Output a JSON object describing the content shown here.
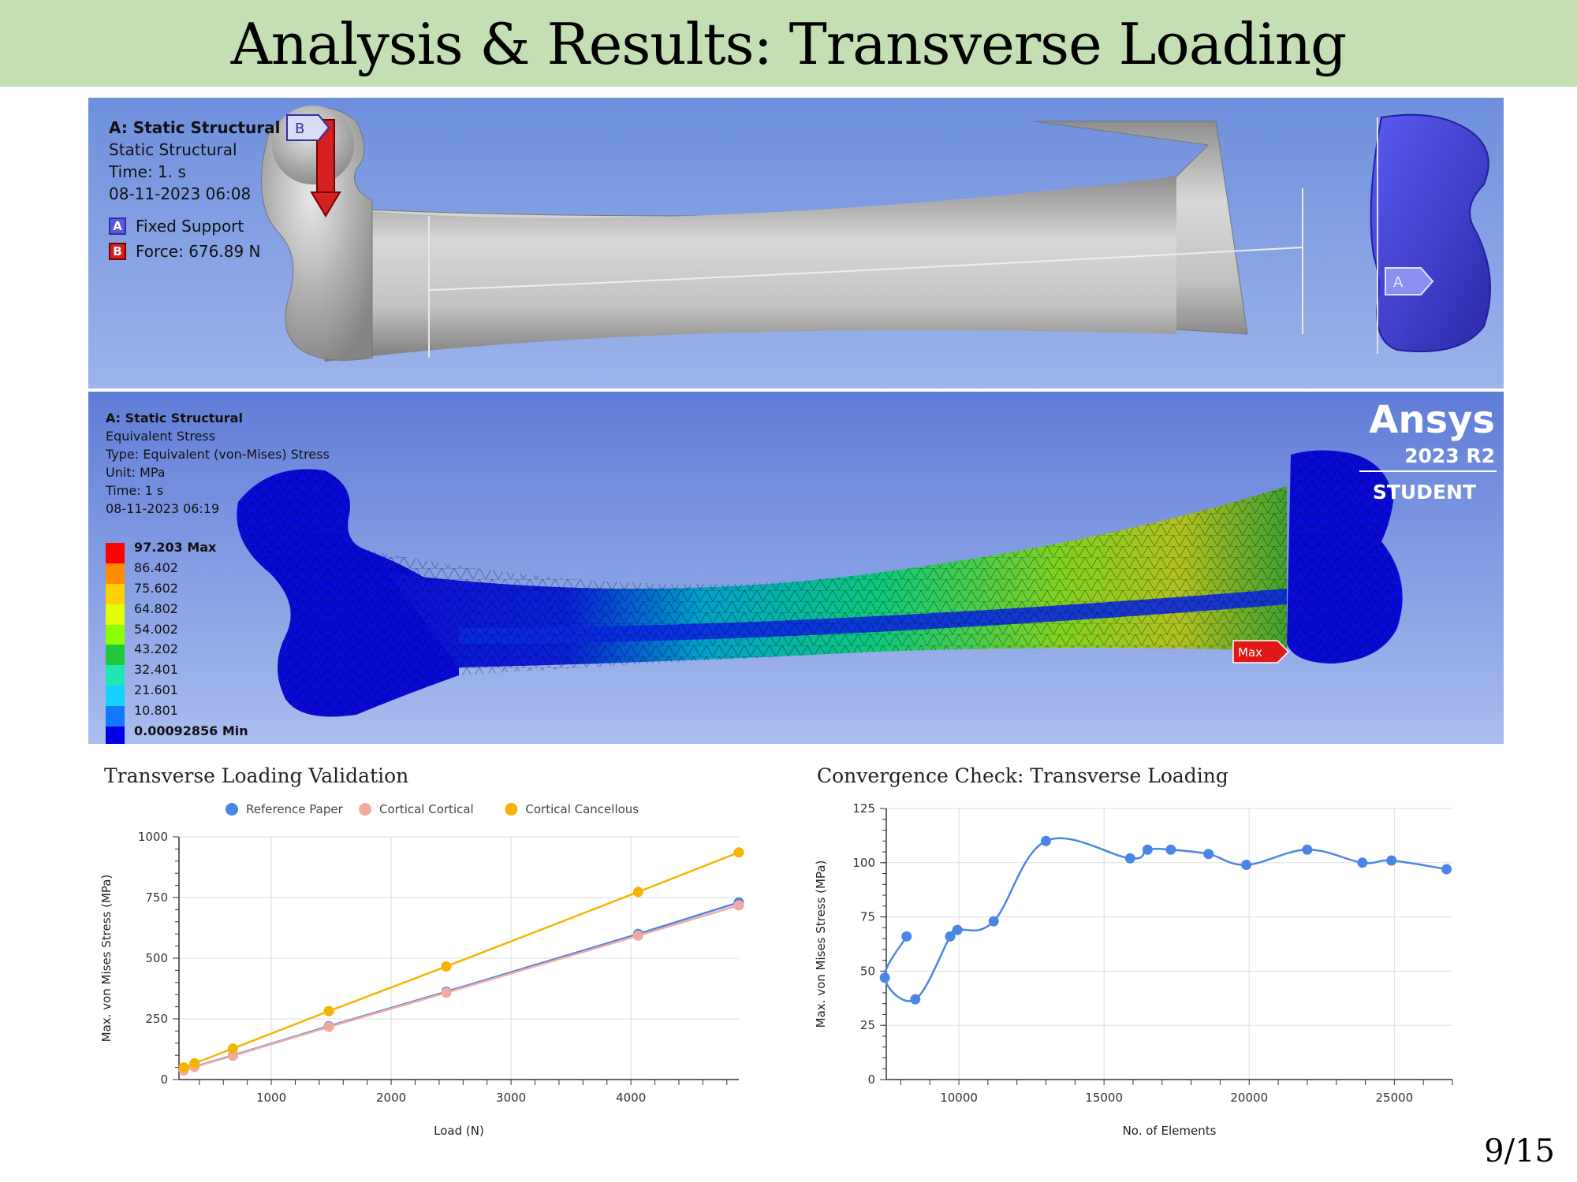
{
  "slide": {
    "title": "Analysis & Results: Transverse Loading",
    "page_number": "9/15"
  },
  "panel_top": {
    "heading": "A: Static Structural",
    "subheading": "Static Structural",
    "time": "Time: 1. s",
    "date": "08-11-2023 06:08",
    "legend": [
      {
        "badge": "A",
        "label": "Fixed Support",
        "color": "#3c3cd0"
      },
      {
        "badge": "B",
        "label": "Force: 676.89 N",
        "color": "#d02020"
      }
    ],
    "force_marker": "B",
    "support_marker": "A"
  },
  "panel_bottom": {
    "heading": "A: Static Structural",
    "lines": [
      "Equivalent Stress",
      "Type: Equivalent (von-Mises) Stress",
      "Unit: MPa",
      "Time: 1 s",
      "08-11-2023 06:19"
    ],
    "contour_levels": [
      "97.203 Max",
      "86.402",
      "75.602",
      "64.802",
      "54.002",
      "43.202",
      "32.401",
      "21.601",
      "10.801",
      "0.00092856 Min"
    ],
    "contour_colors": [
      "#ff0000",
      "#ff8c00",
      "#ffd000",
      "#e6ff00",
      "#8cff00",
      "#22c83c",
      "#1ee6b4",
      "#14d2ff",
      "#1478ff",
      "#0000e6"
    ],
    "max_marker": "Max",
    "brand": "Ansys",
    "brand_version": "2023 R2",
    "brand_edition": "STUDENT"
  },
  "chart_left_title": "Transverse Loading Validation",
  "chart_right_title": "Convergence Check: Transverse Loading",
  "chart_data": [
    {
      "type": "line",
      "title": "Transverse Loading Validation",
      "xlabel": "Load (N)",
      "ylabel": "Max. von Mises Stress (MPa)",
      "xlim": [
        230,
        4900
      ],
      "ylim": [
        0,
        1000
      ],
      "xticks": [
        1000,
        2000,
        3000,
        4000
      ],
      "yticks": [
        0,
        250,
        500,
        750,
        1000
      ],
      "legend_position": "top",
      "series": [
        {
          "name": "Reference Paper",
          "color": "#4a86e8",
          "x": [
            270,
            360,
            680,
            1480,
            2460,
            4060,
            4900
          ],
          "y": [
            40,
            53,
            100,
            220,
            362,
            600,
            730
          ]
        },
        {
          "name": "Cortical Cortical",
          "color": "#f4a9a0",
          "x": [
            270,
            360,
            680,
            1480,
            2460,
            4060,
            4900
          ],
          "y": [
            38,
            52,
            98,
            217,
            358,
            593,
            718
          ]
        },
        {
          "name": "Cortical Cancellous",
          "color": "#f4b400",
          "x": [
            270,
            360,
            680,
            1480,
            2460,
            4060,
            4900
          ],
          "y": [
            50,
            67,
            128,
            282,
            466,
            773,
            936
          ]
        }
      ]
    },
    {
      "type": "line",
      "title": "Convergence Check: Transverse Loading",
      "xlabel": "No. of Elements",
      "ylabel": "Max. von Mises Stress (MPa)",
      "xlim": [
        7500,
        27000
      ],
      "ylim": [
        0,
        125
      ],
      "xticks": [
        10000,
        15000,
        20000,
        25000
      ],
      "yticks": [
        0,
        25,
        50,
        75,
        100,
        125
      ],
      "series": [
        {
          "color": "#4a86e8",
          "x": [
            8200,
            7450,
            8500,
            9700,
            9950,
            11200,
            13000,
            15900,
            16500,
            17300,
            18600,
            19900,
            22000,
            23900,
            24900,
            26800
          ],
          "y": [
            66,
            47,
            37,
            66,
            69,
            73,
            110,
            102,
            106,
            106,
            104,
            99,
            106,
            100,
            101,
            97
          ]
        }
      ]
    }
  ]
}
